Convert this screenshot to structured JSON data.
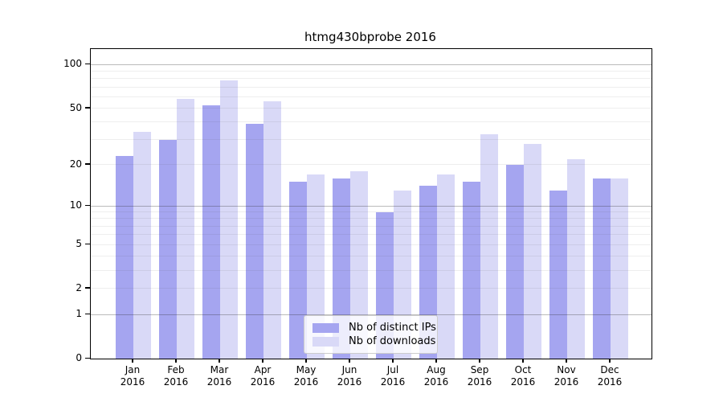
{
  "title": "htmg430bprobe 2016",
  "chart_data": {
    "type": "bar",
    "title": "htmg430bprobe 2016",
    "categories": [
      "Jan",
      "Feb",
      "Mar",
      "Apr",
      "May",
      "Jun",
      "Jul",
      "Aug",
      "Sep",
      "Oct",
      "Nov",
      "Dec"
    ],
    "category_year": "2016",
    "series": [
      {
        "name": "Nb of distinct IPs",
        "color": "#a5a5f0",
        "values": [
          23,
          30,
          52,
          39,
          15,
          16,
          9,
          14,
          15,
          20,
          13,
          16
        ]
      },
      {
        "name": "Nb of downloads",
        "color": "#d9d9f7",
        "values": [
          34,
          58,
          78,
          56,
          17,
          18,
          13,
          17,
          33,
          28,
          22,
          16
        ]
      }
    ],
    "xlabel": "",
    "ylabel": "",
    "yscale": "log1p",
    "ylim": [
      0,
      128
    ],
    "ytick_values": [
      100,
      50,
      20,
      10,
      5,
      2,
      1,
      0
    ],
    "ytick_labels": [
      "100",
      "50",
      "20",
      "10",
      "5",
      "2",
      "1",
      "0"
    ],
    "major_gridlines": [
      1,
      10,
      100
    ],
    "minor_gridlines": [
      2,
      3,
      4,
      5,
      6,
      7,
      8,
      9,
      20,
      30,
      40,
      50,
      60,
      70,
      80,
      90
    ],
    "grid": "horizontal",
    "legend_position": "bottom-center",
    "frame_color": "#000000",
    "background_color": "#ffffff"
  },
  "legend": {
    "items": [
      {
        "label": "Nb of distinct IPs",
        "color": "#a5a5f0"
      },
      {
        "label": "Nb of downloads",
        "color": "#d9d9f7"
      }
    ]
  }
}
